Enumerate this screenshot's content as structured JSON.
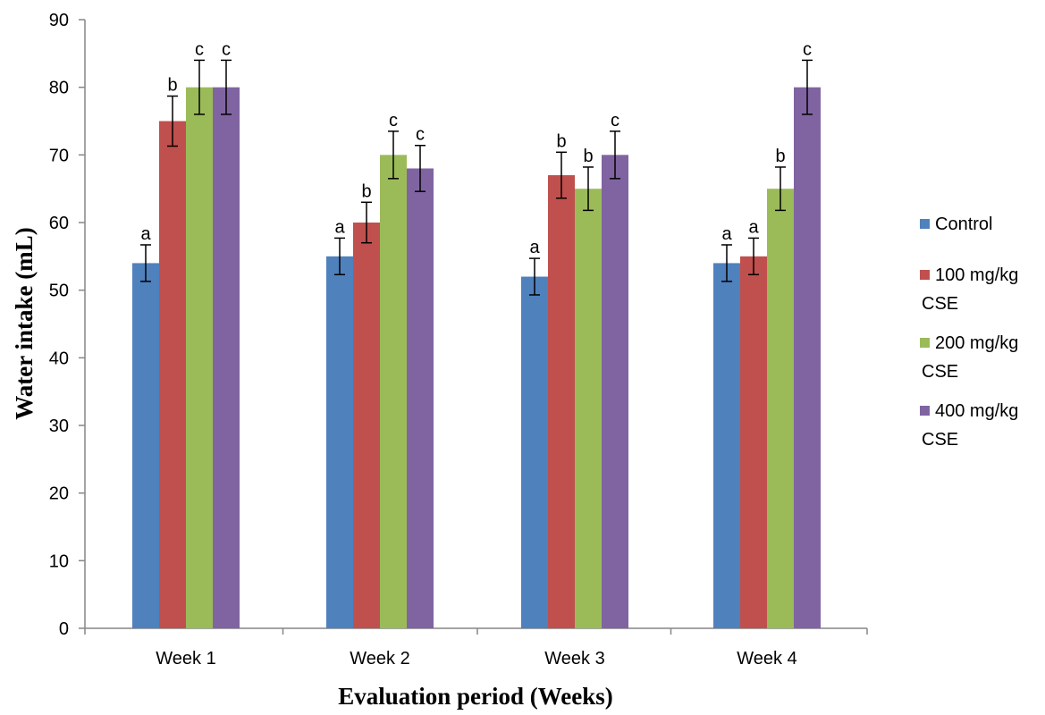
{
  "chart_data": {
    "type": "bar",
    "title": "",
    "xlabel": "Evaluation period (Weeks)",
    "ylabel": "Water intake (mL)",
    "ylim": [
      0,
      90
    ],
    "yticks": [
      0,
      10,
      20,
      30,
      40,
      50,
      60,
      70,
      80,
      90
    ],
    "categories": [
      "Week 1",
      "Week 2",
      "Week 3",
      "Week 4"
    ],
    "series": [
      {
        "name": "Control",
        "legend_lines": [
          "Control"
        ],
        "color": "#4f81bd",
        "values": [
          54,
          55,
          52,
          54
        ],
        "error": [
          2.7,
          2.7,
          2.7,
          2.7
        ],
        "labels": [
          "a",
          "a",
          "a",
          "a"
        ]
      },
      {
        "name": "100 mg/kg CSE",
        "legend_lines": [
          "100 mg/kg",
          "CSE"
        ],
        "color": "#c0504d",
        "values": [
          75,
          60,
          67,
          55
        ],
        "error": [
          3.7,
          3.0,
          3.4,
          2.7
        ],
        "labels": [
          "b",
          "b",
          "b",
          "a"
        ]
      },
      {
        "name": "200 mg/kg CSE",
        "legend_lines": [
          "200 mg/kg",
          "CSE"
        ],
        "color": "#9bbb59",
        "values": [
          80,
          70,
          65,
          65
        ],
        "error": [
          4.0,
          3.5,
          3.2,
          3.2
        ],
        "labels": [
          "c",
          "c",
          "b",
          "b"
        ]
      },
      {
        "name": "400 mg/kg CSE",
        "legend_lines": [
          "400 mg/kg",
          "CSE"
        ],
        "color": "#8064a2",
        "values": [
          80,
          68,
          70,
          80
        ],
        "error": [
          4.0,
          3.4,
          3.5,
          4.0
        ],
        "labels": [
          "c",
          "c",
          "c",
          "c"
        ]
      }
    ],
    "legend": "right",
    "grid": false
  }
}
